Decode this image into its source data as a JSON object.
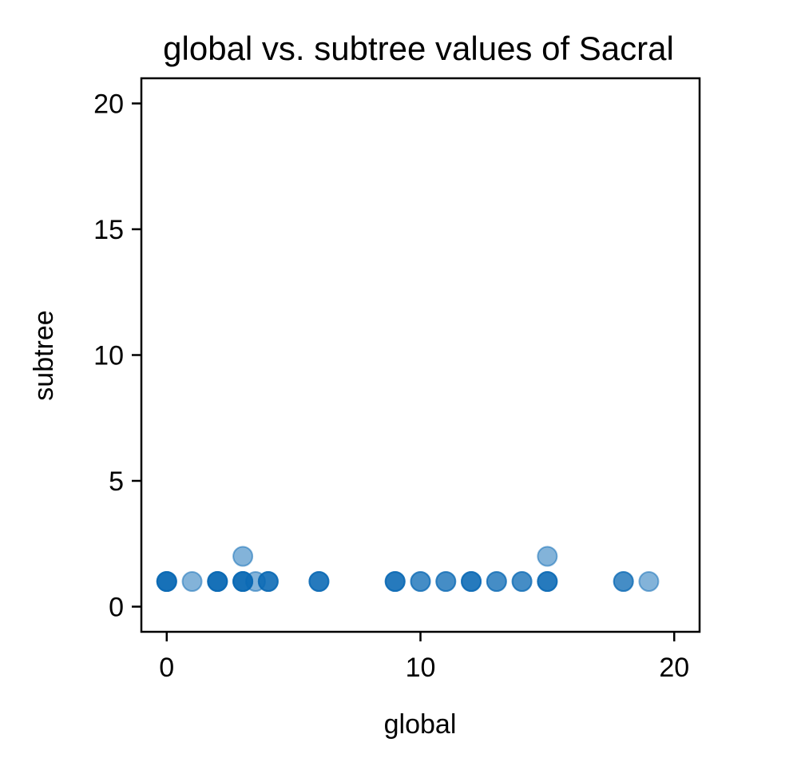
{
  "chart_data": {
    "type": "scatter",
    "title": "global vs. subtree values of Sacral",
    "xlabel": "global",
    "ylabel": "subtree",
    "xlim": [
      -1,
      21
    ],
    "ylim": [
      -1,
      21
    ],
    "xticks": [
      0,
      10,
      20
    ],
    "yticks": [
      0,
      5,
      10,
      15,
      20
    ],
    "grid": false,
    "marker_color": "#0868b4",
    "marker_opacity": 0.5,
    "points": [
      {
        "x": 0,
        "y": 1
      },
      {
        "x": 0,
        "y": 1
      },
      {
        "x": 0,
        "y": 1
      },
      {
        "x": 0,
        "y": 1
      },
      {
        "x": 1,
        "y": 1
      },
      {
        "x": 2,
        "y": 1
      },
      {
        "x": 2,
        "y": 1
      },
      {
        "x": 2,
        "y": 1
      },
      {
        "x": 2,
        "y": 1
      },
      {
        "x": 3,
        "y": 1
      },
      {
        "x": 3,
        "y": 1
      },
      {
        "x": 3,
        "y": 1
      },
      {
        "x": 3,
        "y": 1
      },
      {
        "x": 3,
        "y": 2
      },
      {
        "x": 3.5,
        "y": 1
      },
      {
        "x": 4,
        "y": 1
      },
      {
        "x": 4,
        "y": 1
      },
      {
        "x": 4,
        "y": 1
      },
      {
        "x": 6,
        "y": 1
      },
      {
        "x": 6,
        "y": 1
      },
      {
        "x": 6,
        "y": 1
      },
      {
        "x": 9,
        "y": 1
      },
      {
        "x": 9,
        "y": 1
      },
      {
        "x": 9,
        "y": 1
      },
      {
        "x": 10,
        "y": 1
      },
      {
        "x": 10,
        "y": 1
      },
      {
        "x": 11,
        "y": 1
      },
      {
        "x": 11,
        "y": 1
      },
      {
        "x": 12,
        "y": 1
      },
      {
        "x": 12,
        "y": 1
      },
      {
        "x": 12,
        "y": 1
      },
      {
        "x": 13,
        "y": 1
      },
      {
        "x": 13,
        "y": 1
      },
      {
        "x": 14,
        "y": 1
      },
      {
        "x": 14,
        "y": 1
      },
      {
        "x": 15,
        "y": 1
      },
      {
        "x": 15,
        "y": 1
      },
      {
        "x": 15,
        "y": 1
      },
      {
        "x": 15,
        "y": 2
      },
      {
        "x": 18,
        "y": 1
      },
      {
        "x": 18,
        "y": 1
      },
      {
        "x": 19,
        "y": 1
      }
    ]
  }
}
